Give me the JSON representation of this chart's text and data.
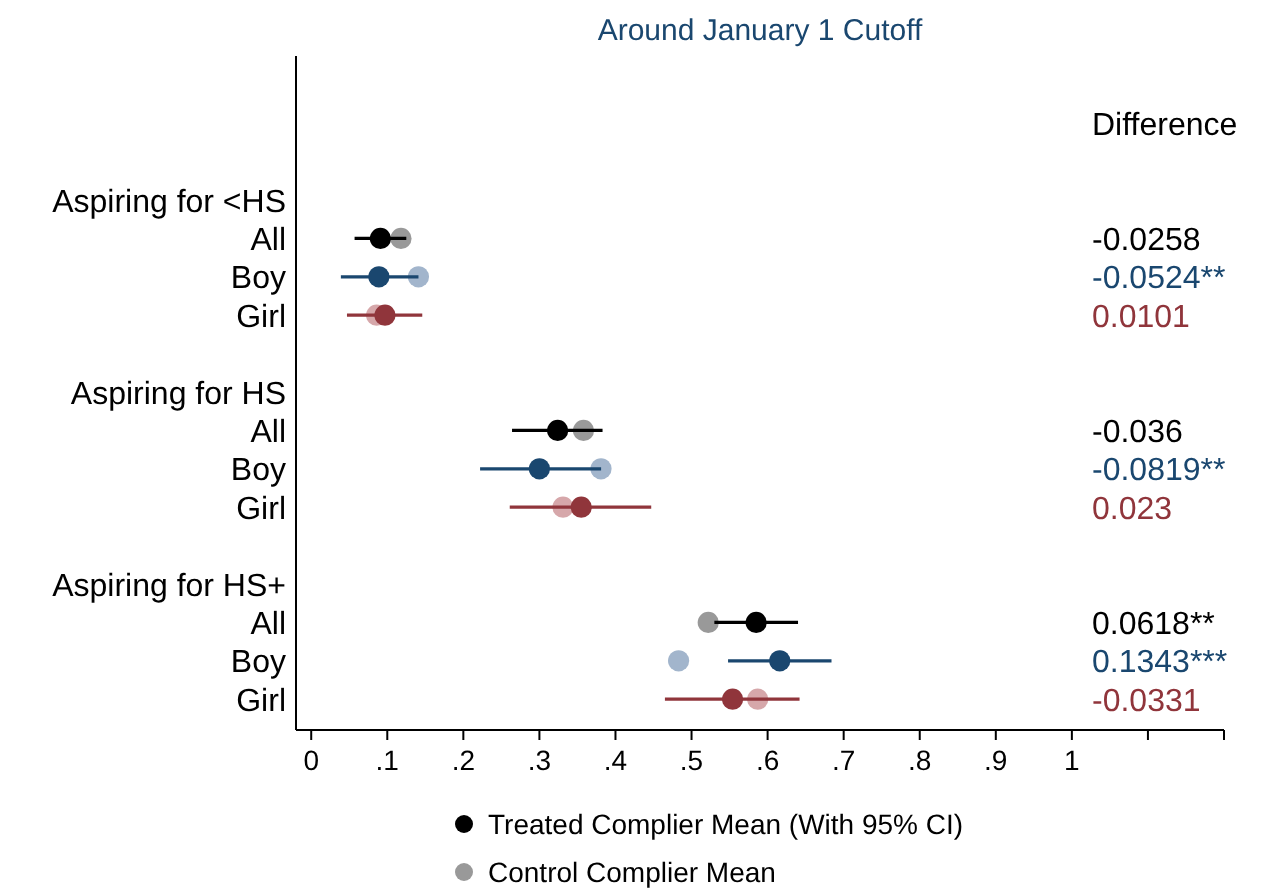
{
  "chart_data": {
    "type": "scatter",
    "orientation": "horizontal",
    "title": "Around January 1 Cutoff",
    "categories": [
      "Aspiring for <HS",
      "All",
      "Boy",
      "Girl",
      null,
      "Aspiring for HS",
      "All",
      "Boy",
      "Girl",
      null,
      "Aspiring for HS+",
      "All",
      "Boy",
      "Girl"
    ],
    "xlim": [
      -0.02,
      1.2
    ],
    "xticks": [
      0,
      {
        "value": 0.1,
        "label": ".1"
      },
      {
        "value": 0.2,
        "label": ".2"
      },
      {
        "value": 0.3,
        "label": ".3"
      },
      {
        "value": 0.4,
        "label": ".4"
      },
      {
        "value": 0.5,
        "label": ".5"
      },
      {
        "value": 0.6,
        "label": ".6"
      },
      {
        "value": 0.7,
        "label": ".7"
      },
      {
        "value": 0.8,
        "label": ".8"
      },
      {
        "value": 0.9,
        "label": ".9"
      },
      1,
      {
        "value": 1.1,
        "label": null
      },
      {
        "value": 1.2,
        "label": null
      }
    ],
    "legend": "bottom",
    "marker": "circle",
    "series": [
      {
        "name": "Treated Complier Mean (With 95% CI)",
        "color": "#000000",
        "colors": [
          null,
          "#000000",
          "#1a476f",
          "#90353b",
          null,
          null,
          "#000000",
          "#1a476f",
          "#90353b",
          null,
          null,
          "#000000",
          "#1a476f",
          "#90353b"
        ],
        "values": [
          null,
          0.091,
          0.089,
          0.097,
          null,
          null,
          0.324,
          0.3,
          0.355,
          null,
          null,
          0.585,
          0.616,
          0.554
        ],
        "errors": [
          null,
          [
            0.057,
            0.125
          ],
          [
            0.039,
            0.141
          ],
          [
            0.047,
            0.146
          ],
          null,
          null,
          [
            0.264,
            0.383
          ],
          [
            0.222,
            0.3811
          ],
          [
            0.261,
            0.447
          ],
          null,
          null,
          [
            0.53,
            0.64
          ],
          [
            0.548,
            0.684
          ],
          [
            0.465,
            0.642
          ]
        ]
      },
      {
        "name": "Control Complier Mean",
        "color": "#999999",
        "colors": [
          null,
          "#999999",
          "#a2b5cc",
          "#d6a7aa",
          null,
          null,
          "#999999",
          "#a2b5cc",
          "#d6a7aa",
          null,
          null,
          "#999999",
          "#a2b5cc",
          "#d6a7aa"
        ],
        "values": [
          null,
          0.118,
          0.141,
          0.086,
          null,
          null,
          0.358,
          0.381,
          0.331,
          null,
          null,
          0.522,
          0.483,
          0.587
        ]
      }
    ],
    "annotations": [
      "Difference",
      "-0.0258",
      "-0.0524**",
      "0.0101",
      "-0.036",
      "-0.0819**",
      "0.023",
      "0.0618**",
      "0.1343***",
      "-0.0331"
    ]
  }
}
